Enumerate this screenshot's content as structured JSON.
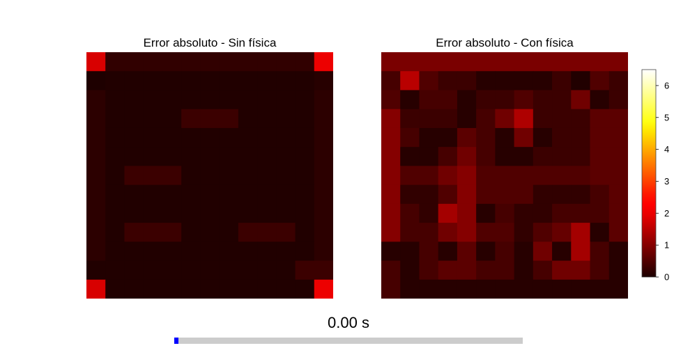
{
  "chart_data": [
    {
      "type": "heatmap",
      "title": "Error absoluto - Sin física",
      "rows": 13,
      "cols": 13,
      "values": [
        [
          1.8,
          0.2,
          0.2,
          0.2,
          0.2,
          0.2,
          0.2,
          0.2,
          0.2,
          0.2,
          0.2,
          0.2,
          2.0
        ],
        [
          0.02,
          0.05,
          0.05,
          0.05,
          0.05,
          0.05,
          0.05,
          0.05,
          0.05,
          0.05,
          0.05,
          0.05,
          0.1
        ],
        [
          0.15,
          0.05,
          0.05,
          0.05,
          0.05,
          0.05,
          0.05,
          0.05,
          0.05,
          0.05,
          0.05,
          0.05,
          0.15
        ],
        [
          0.15,
          0.05,
          0.05,
          0.05,
          0.05,
          0.3,
          0.3,
          0.3,
          0.05,
          0.05,
          0.05,
          0.05,
          0.15
        ],
        [
          0.15,
          0.05,
          0.05,
          0.05,
          0.05,
          0.05,
          0.05,
          0.05,
          0.05,
          0.05,
          0.05,
          0.05,
          0.15
        ],
        [
          0.15,
          0.05,
          0.05,
          0.05,
          0.05,
          0.05,
          0.05,
          0.05,
          0.05,
          0.05,
          0.05,
          0.05,
          0.15
        ],
        [
          0.15,
          0.05,
          0.3,
          0.3,
          0.3,
          0.05,
          0.05,
          0.05,
          0.05,
          0.05,
          0.05,
          0.05,
          0.15
        ],
        [
          0.15,
          0.05,
          0.05,
          0.05,
          0.05,
          0.05,
          0.05,
          0.05,
          0.05,
          0.05,
          0.05,
          0.05,
          0.15
        ],
        [
          0.15,
          0.05,
          0.05,
          0.05,
          0.05,
          0.05,
          0.05,
          0.05,
          0.05,
          0.05,
          0.05,
          0.05,
          0.15
        ],
        [
          0.15,
          0.05,
          0.3,
          0.3,
          0.3,
          0.05,
          0.05,
          0.05,
          0.3,
          0.3,
          0.3,
          0.05,
          0.15
        ],
        [
          0.15,
          0.05,
          0.05,
          0.05,
          0.05,
          0.05,
          0.05,
          0.05,
          0.05,
          0.05,
          0.05,
          0.05,
          0.15
        ],
        [
          0.05,
          0.05,
          0.05,
          0.05,
          0.05,
          0.05,
          0.05,
          0.05,
          0.05,
          0.05,
          0.05,
          0.3,
          0.3
        ],
        [
          1.8,
          0.05,
          0.05,
          0.05,
          0.05,
          0.05,
          0.05,
          0.05,
          0.05,
          0.05,
          0.05,
          0.05,
          2.0
        ]
      ]
    },
    {
      "type": "heatmap",
      "title": "Error absoluto - Con física",
      "rows": 13,
      "cols": 13,
      "values": [
        [
          0.9,
          0.9,
          0.9,
          0.9,
          0.9,
          0.9,
          0.9,
          0.9,
          0.9,
          0.9,
          0.9,
          0.9,
          0.9
        ],
        [
          0.4,
          1.5,
          0.5,
          0.3,
          0.3,
          0.1,
          0.1,
          0.1,
          0.1,
          0.3,
          0.05,
          0.5,
          0.3
        ],
        [
          0.5,
          0.1,
          0.4,
          0.4,
          0.1,
          0.3,
          0.3,
          0.5,
          0.3,
          0.3,
          0.8,
          0.1,
          0.3
        ],
        [
          1.0,
          0.3,
          0.3,
          0.3,
          0.1,
          0.4,
          0.8,
          1.4,
          0.3,
          0.3,
          0.3,
          0.6,
          0.6
        ],
        [
          1.0,
          0.4,
          0.1,
          0.1,
          0.6,
          0.4,
          0.1,
          0.8,
          0.1,
          0.3,
          0.3,
          0.6,
          0.6
        ],
        [
          1.0,
          0.1,
          0.1,
          0.4,
          0.8,
          0.4,
          0.1,
          0.1,
          0.3,
          0.3,
          0.3,
          0.6,
          0.6
        ],
        [
          1.0,
          0.5,
          0.5,
          0.8,
          1.0,
          0.5,
          0.5,
          0.5,
          0.5,
          0.5,
          0.5,
          0.6,
          0.6
        ],
        [
          1.0,
          0.2,
          0.2,
          0.5,
          1.0,
          0.5,
          0.5,
          0.5,
          0.2,
          0.2,
          0.2,
          0.4,
          0.6
        ],
        [
          1.0,
          0.4,
          0.2,
          1.3,
          1.0,
          0.1,
          0.4,
          0.2,
          0.2,
          0.4,
          0.4,
          0.4,
          0.6
        ],
        [
          1.0,
          0.4,
          0.4,
          0.8,
          1.0,
          0.5,
          0.5,
          0.2,
          0.5,
          0.7,
          1.3,
          0.1,
          0.6
        ],
        [
          0.1,
          0.1,
          0.4,
          0.1,
          0.6,
          0.1,
          0.4,
          0.1,
          0.8,
          0.1,
          1.3,
          0.4,
          0.1
        ],
        [
          0.4,
          0.1,
          0.4,
          0.6,
          0.6,
          0.4,
          0.4,
          0.1,
          0.4,
          0.8,
          0.8,
          0.4,
          0.1
        ],
        [
          0.4,
          0.1,
          0.1,
          0.1,
          0.1,
          0.1,
          0.1,
          0.1,
          0.1,
          0.1,
          0.1,
          0.1,
          0.1
        ]
      ]
    }
  ],
  "colorbar": {
    "min": 0,
    "max": 6.5,
    "ticks": [
      "0",
      "1",
      "2",
      "3",
      "4",
      "5",
      "6"
    ],
    "colormap": "hot"
  },
  "time_label": "0.00 s",
  "progress": {
    "value": 0.0,
    "fill_color": "#0000ff",
    "track_color": "#cccccc"
  }
}
